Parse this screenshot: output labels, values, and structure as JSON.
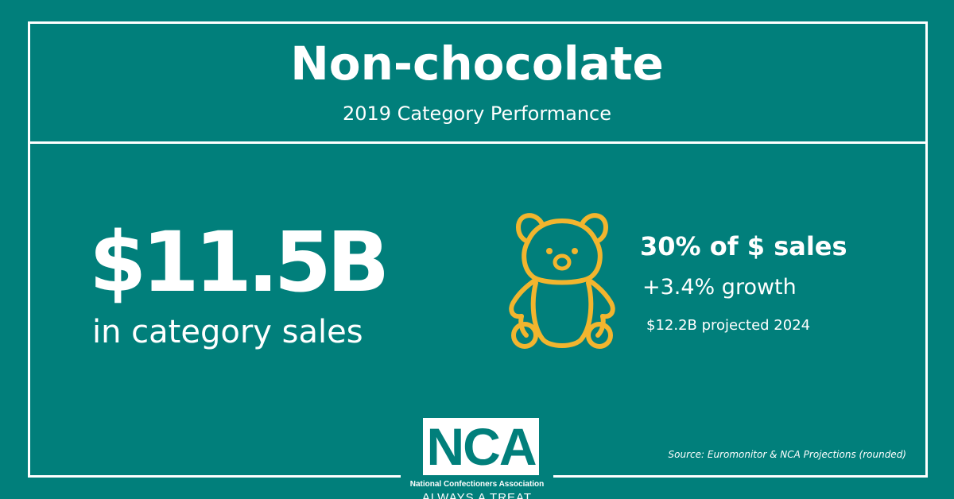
{
  "colors": {
    "background": "#017f7b",
    "text": "#ffffff",
    "bear_outline": "#f2b52e"
  },
  "header": {
    "title": "Non-chocolate",
    "subtitle": "2019 Category Performance"
  },
  "main_stat": {
    "value": "$11.5B",
    "caption": "in category sales"
  },
  "icon": {
    "name": "gummy-bear-icon"
  },
  "side_stats": {
    "share": "30% of $ sales",
    "growth": "+3.4% growth",
    "projection": "$12.2B projected 2024"
  },
  "logo": {
    "letters": "NCA",
    "organization": "National Confectioners Association",
    "tagline": "ALWAYS A TREAT"
  },
  "footer": {
    "source": "Source: Euromonitor & NCA Projections (rounded)"
  }
}
